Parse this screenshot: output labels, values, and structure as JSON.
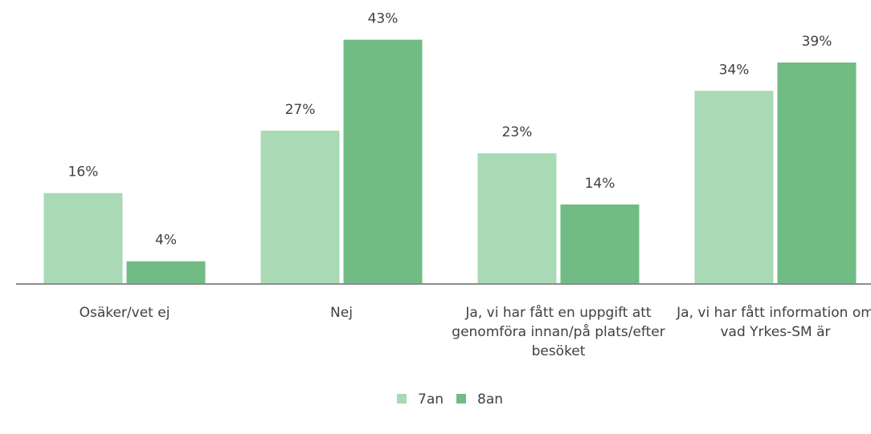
{
  "chart_data": {
    "type": "bar",
    "categories": [
      "Osäker/vet ej",
      "Nej",
      "Ja, vi har fått en uppgift att genomföra innan/på plats/efter besöket",
      "Ja, vi har fått information om vad Yrkes-SM är"
    ],
    "series": [
      {
        "name": "7an",
        "color": "#a9d9b5",
        "values": [
          16,
          27,
          23,
          34
        ],
        "value_labels": [
          "16%",
          "27%",
          "23%",
          "34%"
        ]
      },
      {
        "name": "8an",
        "color": "#70bc84",
        "values": [
          4,
          43,
          14,
          39
        ],
        "value_labels": [
          "4%",
          "43%",
          "14%",
          "39%"
        ]
      }
    ],
    "ylim": [
      0,
      50
    ],
    "legend": "bottom"
  }
}
